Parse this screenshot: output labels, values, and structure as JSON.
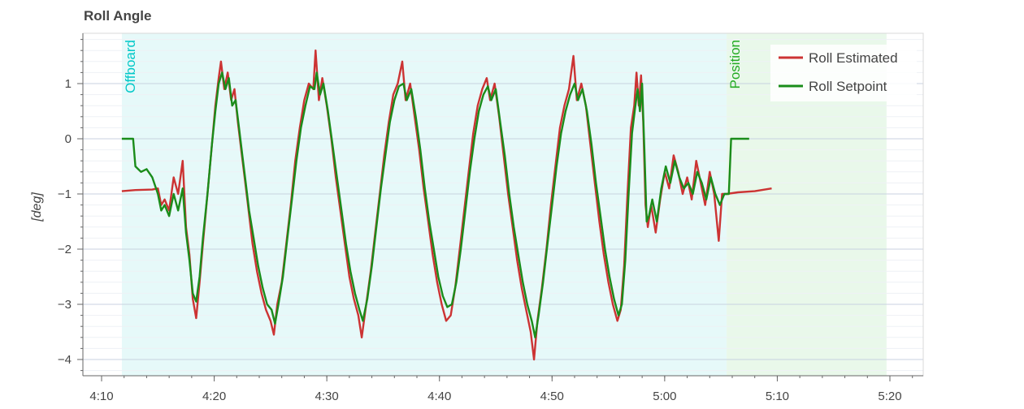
{
  "chart_data": {
    "type": "line",
    "title": "Roll Angle",
    "xlabel": "",
    "ylabel": "[deg]",
    "xlim": [
      250,
      1180
    ],
    "ylim": [
      -4.3,
      1.9
    ],
    "x_ticks": [
      {
        "value": 250,
        "label": "4:10"
      },
      {
        "value": 260,
        "label": "4:20"
      },
      {
        "value": 270,
        "label": "4:30"
      },
      {
        "value": 280,
        "label": "4:40"
      },
      {
        "value": 290,
        "label": "4:50"
      },
      {
        "value": 300,
        "label": "5:00"
      },
      {
        "value": 310,
        "label": "5:10"
      },
      {
        "value": 320,
        "label": "5:20"
      }
    ],
    "y_ticks": [
      {
        "value": 1,
        "label": "1"
      },
      {
        "value": 0,
        "label": "0"
      },
      {
        "value": -1,
        "label": "−1"
      },
      {
        "value": -2,
        "label": "−2"
      },
      {
        "value": -3,
        "label": "−3"
      },
      {
        "value": -4,
        "label": "−4"
      }
    ],
    "grid": true,
    "legend_position": "top-right",
    "modes": [
      {
        "name": "Offboard",
        "start": 251.8,
        "end": 305.5,
        "color": "#00c8c8",
        "fill": "#e6f9f9"
      },
      {
        "name": "Position",
        "start": 305.5,
        "end": 319.7,
        "color": "#22aa22",
        "fill": "#e9f8ea"
      }
    ],
    "series": [
      {
        "name": "Roll Estimated",
        "color": "#cc3333",
        "points": [
          [
            251.8,
            -0.95
          ],
          [
            253.0,
            -0.93
          ],
          [
            254.5,
            -0.92
          ],
          [
            255.0,
            -0.9
          ],
          [
            255.3,
            -1.2
          ],
          [
            255.6,
            -1.1
          ],
          [
            256.0,
            -1.3
          ],
          [
            256.4,
            -0.7
          ],
          [
            256.8,
            -1.0
          ],
          [
            257.2,
            -0.4
          ],
          [
            257.5,
            -1.6
          ],
          [
            257.8,
            -2.1
          ],
          [
            258.1,
            -2.9
          ],
          [
            258.4,
            -3.25
          ],
          [
            258.7,
            -2.6
          ],
          [
            259.0,
            -1.9
          ],
          [
            259.4,
            -1.0
          ],
          [
            259.8,
            -0.1
          ],
          [
            260.1,
            0.6
          ],
          [
            260.4,
            1.1
          ],
          [
            260.6,
            1.4
          ],
          [
            260.9,
            0.9
          ],
          [
            261.2,
            1.2
          ],
          [
            261.5,
            0.7
          ],
          [
            261.8,
            0.9
          ],
          [
            262.1,
            0.3
          ],
          [
            262.4,
            -0.2
          ],
          [
            262.7,
            -0.7
          ],
          [
            263.0,
            -1.2
          ],
          [
            263.4,
            -1.9
          ],
          [
            263.8,
            -2.4
          ],
          [
            264.2,
            -2.8
          ],
          [
            264.6,
            -3.1
          ],
          [
            265.0,
            -3.3
          ],
          [
            265.3,
            -3.55
          ],
          [
            265.6,
            -3.0
          ],
          [
            266.0,
            -2.6
          ],
          [
            266.4,
            -1.9
          ],
          [
            266.8,
            -1.2
          ],
          [
            267.2,
            -0.4
          ],
          [
            267.6,
            0.2
          ],
          [
            268.0,
            0.7
          ],
          [
            268.4,
            1.0
          ],
          [
            268.8,
            0.9
          ],
          [
            269.0,
            1.6
          ],
          [
            269.3,
            0.7
          ],
          [
            269.6,
            1.1
          ],
          [
            270.0,
            0.6
          ],
          [
            270.4,
            0.0
          ],
          [
            270.8,
            -0.7
          ],
          [
            271.2,
            -1.3
          ],
          [
            271.6,
            -1.9
          ],
          [
            272.0,
            -2.5
          ],
          [
            272.4,
            -2.9
          ],
          [
            272.8,
            -3.2
          ],
          [
            273.1,
            -3.6
          ],
          [
            273.5,
            -3.0
          ],
          [
            273.9,
            -2.4
          ],
          [
            274.3,
            -1.7
          ],
          [
            274.7,
            -1.0
          ],
          [
            275.1,
            -0.3
          ],
          [
            275.5,
            0.3
          ],
          [
            275.9,
            0.8
          ],
          [
            276.3,
            1.0
          ],
          [
            276.7,
            1.4
          ],
          [
            277.0,
            0.7
          ],
          [
            277.4,
            1.0
          ],
          [
            277.8,
            0.4
          ],
          [
            278.2,
            -0.2
          ],
          [
            278.6,
            -0.9
          ],
          [
            279.0,
            -1.5
          ],
          [
            279.4,
            -2.1
          ],
          [
            279.8,
            -2.6
          ],
          [
            280.2,
            -3.0
          ],
          [
            280.6,
            -3.3
          ],
          [
            281.0,
            -3.2
          ],
          [
            281.4,
            -2.7
          ],
          [
            281.8,
            -2.0
          ],
          [
            282.2,
            -1.3
          ],
          [
            282.6,
            -0.6
          ],
          [
            283.0,
            0.1
          ],
          [
            283.4,
            0.6
          ],
          [
            283.8,
            0.9
          ],
          [
            284.2,
            1.1
          ],
          [
            284.5,
            0.7
          ],
          [
            284.9,
            1.0
          ],
          [
            285.3,
            0.4
          ],
          [
            285.7,
            -0.3
          ],
          [
            286.1,
            -1.0
          ],
          [
            286.5,
            -1.6
          ],
          [
            286.9,
            -2.2
          ],
          [
            287.3,
            -2.7
          ],
          [
            287.7,
            -3.1
          ],
          [
            288.1,
            -3.5
          ],
          [
            288.4,
            -4.0
          ],
          [
            288.7,
            -3.3
          ],
          [
            289.1,
            -2.7
          ],
          [
            289.5,
            -2.0
          ],
          [
            289.9,
            -1.2
          ],
          [
            290.3,
            -0.5
          ],
          [
            290.7,
            0.2
          ],
          [
            291.1,
            0.6
          ],
          [
            291.5,
            0.9
          ],
          [
            291.9,
            1.5
          ],
          [
            292.2,
            0.7
          ],
          [
            292.6,
            1.0
          ],
          [
            293.0,
            0.6
          ],
          [
            293.4,
            -0.1
          ],
          [
            293.8,
            -0.8
          ],
          [
            294.2,
            -1.5
          ],
          [
            294.6,
            -2.1
          ],
          [
            295.0,
            -2.6
          ],
          [
            295.4,
            -3.0
          ],
          [
            295.8,
            -3.3
          ],
          [
            296.1,
            -3.1
          ],
          [
            296.4,
            -2.3
          ],
          [
            296.7,
            -1.0
          ],
          [
            297.0,
            0.2
          ],
          [
            297.3,
            0.6
          ],
          [
            297.5,
            1.2
          ],
          [
            297.7,
            0.6
          ],
          [
            297.9,
            1.15
          ],
          [
            298.1,
            0.3
          ],
          [
            298.3,
            -1.2
          ],
          [
            298.5,
            -1.6
          ],
          [
            298.8,
            -1.2
          ],
          [
            299.2,
            -1.7
          ],
          [
            299.6,
            -1.1
          ],
          [
            300.0,
            -0.6
          ],
          [
            300.4,
            -0.9
          ],
          [
            300.8,
            -0.3
          ],
          [
            301.2,
            -0.6
          ],
          [
            301.6,
            -1.0
          ],
          [
            302.0,
            -0.7
          ],
          [
            302.4,
            -1.1
          ],
          [
            302.8,
            -0.4
          ],
          [
            303.2,
            -0.8
          ],
          [
            303.6,
            -1.2
          ],
          [
            304.0,
            -0.6
          ],
          [
            304.4,
            -1.0
          ],
          [
            304.8,
            -1.85
          ],
          [
            305.1,
            -1.0
          ],
          [
            305.5,
            -1.0
          ],
          [
            306.5,
            -0.97
          ],
          [
            308.0,
            -0.95
          ],
          [
            309.5,
            -0.9
          ]
        ]
      },
      {
        "name": "Roll Setpoint",
        "color": "#1a8c1a",
        "points": [
          [
            251.8,
            0.0
          ],
          [
            252.8,
            0.0
          ],
          [
            253.0,
            -0.5
          ],
          [
            253.5,
            -0.6
          ],
          [
            254.0,
            -0.55
          ],
          [
            254.5,
            -0.7
          ],
          [
            255.0,
            -1.0
          ],
          [
            255.3,
            -1.3
          ],
          [
            255.6,
            -1.2
          ],
          [
            256.0,
            -1.4
          ],
          [
            256.4,
            -1.0
          ],
          [
            256.8,
            -1.3
          ],
          [
            257.2,
            -0.9
          ],
          [
            257.5,
            -1.7
          ],
          [
            257.8,
            -2.2
          ],
          [
            258.1,
            -2.8
          ],
          [
            258.4,
            -2.95
          ],
          [
            258.7,
            -2.5
          ],
          [
            259.0,
            -1.8
          ],
          [
            259.4,
            -1.0
          ],
          [
            259.8,
            -0.1
          ],
          [
            260.1,
            0.5
          ],
          [
            260.4,
            1.0
          ],
          [
            260.7,
            1.2
          ],
          [
            261.0,
            0.9
          ],
          [
            261.3,
            1.1
          ],
          [
            261.6,
            0.6
          ],
          [
            261.9,
            0.7
          ],
          [
            262.2,
            0.2
          ],
          [
            262.5,
            -0.3
          ],
          [
            262.8,
            -0.8
          ],
          [
            263.1,
            -1.3
          ],
          [
            263.5,
            -1.8
          ],
          [
            263.9,
            -2.3
          ],
          [
            264.3,
            -2.7
          ],
          [
            264.7,
            -3.0
          ],
          [
            265.1,
            -3.1
          ],
          [
            265.4,
            -3.35
          ],
          [
            265.7,
            -3.0
          ],
          [
            266.1,
            -2.5
          ],
          [
            266.5,
            -1.8
          ],
          [
            266.9,
            -1.1
          ],
          [
            267.3,
            -0.4
          ],
          [
            267.7,
            0.2
          ],
          [
            268.1,
            0.6
          ],
          [
            268.5,
            0.95
          ],
          [
            268.9,
            0.9
          ],
          [
            269.1,
            1.2
          ],
          [
            269.4,
            0.8
          ],
          [
            269.7,
            1.0
          ],
          [
            270.1,
            0.5
          ],
          [
            270.5,
            -0.1
          ],
          [
            270.9,
            -0.7
          ],
          [
            271.3,
            -1.3
          ],
          [
            271.7,
            -1.9
          ],
          [
            272.1,
            -2.4
          ],
          [
            272.5,
            -2.8
          ],
          [
            272.9,
            -3.1
          ],
          [
            273.2,
            -3.3
          ],
          [
            273.6,
            -2.9
          ],
          [
            274.0,
            -2.3
          ],
          [
            274.4,
            -1.6
          ],
          [
            274.8,
            -0.9
          ],
          [
            275.2,
            -0.3
          ],
          [
            275.6,
            0.3
          ],
          [
            276.0,
            0.7
          ],
          [
            276.4,
            0.95
          ],
          [
            276.8,
            1.0
          ],
          [
            277.1,
            0.7
          ],
          [
            277.5,
            0.9
          ],
          [
            277.9,
            0.4
          ],
          [
            278.3,
            -0.2
          ],
          [
            278.7,
            -0.9
          ],
          [
            279.1,
            -1.5
          ],
          [
            279.5,
            -2.0
          ],
          [
            279.9,
            -2.5
          ],
          [
            280.3,
            -2.85
          ],
          [
            280.7,
            -3.05
          ],
          [
            281.1,
            -3.0
          ],
          [
            281.5,
            -2.6
          ],
          [
            281.9,
            -2.0
          ],
          [
            282.3,
            -1.3
          ],
          [
            282.7,
            -0.6
          ],
          [
            283.1,
            0.0
          ],
          [
            283.5,
            0.5
          ],
          [
            283.9,
            0.8
          ],
          [
            284.3,
            0.95
          ],
          [
            284.6,
            0.7
          ],
          [
            285.0,
            0.9
          ],
          [
            285.4,
            0.3
          ],
          [
            285.8,
            -0.3
          ],
          [
            286.2,
            -1.0
          ],
          [
            286.6,
            -1.6
          ],
          [
            287.0,
            -2.1
          ],
          [
            287.4,
            -2.6
          ],
          [
            287.8,
            -3.0
          ],
          [
            288.2,
            -3.3
          ],
          [
            288.5,
            -3.6
          ],
          [
            288.8,
            -3.2
          ],
          [
            289.2,
            -2.6
          ],
          [
            289.6,
            -1.9
          ],
          [
            290.0,
            -1.2
          ],
          [
            290.4,
            -0.5
          ],
          [
            290.8,
            0.1
          ],
          [
            291.2,
            0.5
          ],
          [
            291.6,
            0.8
          ],
          [
            292.0,
            1.0
          ],
          [
            292.3,
            0.7
          ],
          [
            292.7,
            0.9
          ],
          [
            293.1,
            0.5
          ],
          [
            293.5,
            -0.1
          ],
          [
            293.9,
            -0.8
          ],
          [
            294.3,
            -1.4
          ],
          [
            294.7,
            -2.0
          ],
          [
            295.1,
            -2.5
          ],
          [
            295.5,
            -2.9
          ],
          [
            295.9,
            -3.2
          ],
          [
            296.2,
            -3.0
          ],
          [
            296.5,
            -2.2
          ],
          [
            296.8,
            -1.0
          ],
          [
            297.1,
            0.1
          ],
          [
            297.4,
            0.6
          ],
          [
            297.6,
            0.9
          ],
          [
            297.8,
            0.5
          ],
          [
            298.0,
            1.0
          ],
          [
            298.2,
            -0.2
          ],
          [
            298.4,
            -1.5
          ],
          [
            298.6,
            -1.4
          ],
          [
            298.9,
            -1.1
          ],
          [
            299.3,
            -1.5
          ],
          [
            299.7,
            -0.9
          ],
          [
            300.1,
            -0.5
          ],
          [
            300.5,
            -0.8
          ],
          [
            300.9,
            -0.4
          ],
          [
            301.3,
            -0.7
          ],
          [
            301.7,
            -0.9
          ],
          [
            302.1,
            -0.8
          ],
          [
            302.5,
            -1.0
          ],
          [
            302.9,
            -0.6
          ],
          [
            303.3,
            -0.8
          ],
          [
            303.7,
            -1.1
          ],
          [
            304.1,
            -0.7
          ],
          [
            304.5,
            -1.0
          ],
          [
            304.9,
            -1.2
          ],
          [
            305.3,
            -1.0
          ],
          [
            305.7,
            -1.0
          ],
          [
            305.9,
            0.0
          ],
          [
            306.5,
            0.0
          ],
          [
            307.5,
            0.0
          ]
        ]
      }
    ]
  }
}
